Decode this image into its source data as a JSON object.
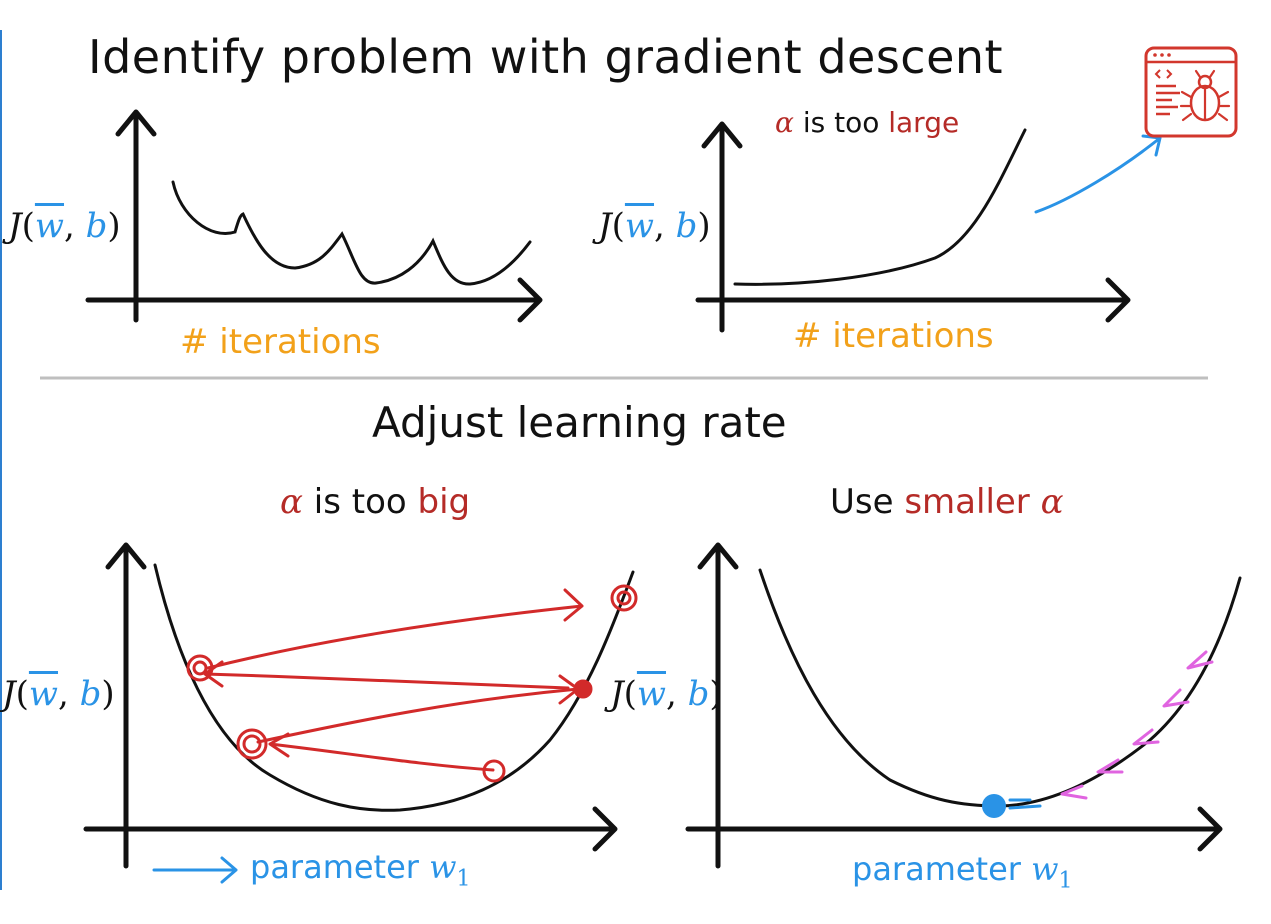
{
  "page": {
    "title": "Identify problem with gradient descent",
    "section_title": "Adjust learning rate"
  },
  "top_left": {
    "ylabel_fn": "J",
    "ylabel_w": "w",
    "ylabel_b": "b",
    "xlabel": "# iterations"
  },
  "top_right": {
    "ylabel_fn": "J",
    "ylabel_w": "w",
    "ylabel_b": "b",
    "xlabel": "# iterations",
    "caption_alpha": "α",
    "caption_mid": " is too ",
    "caption_word": "large"
  },
  "bottom_left": {
    "ylabel_fn": "J",
    "ylabel_w": "w",
    "ylabel_b": "b",
    "caption_alpha": "α",
    "caption_mid": " is too ",
    "caption_word": "big",
    "param_text": "parameter ",
    "param_var": "w",
    "param_sub": "1"
  },
  "bottom_right": {
    "ylabel_fn": "J",
    "ylabel_w": "w",
    "ylabel_b": "b",
    "caption_lead": "Use ",
    "caption_word": "smaller",
    "caption_alpha": "α",
    "param_text": "parameter ",
    "param_var": "w",
    "param_sub": "1"
  },
  "icons": {
    "debug": "code-bug-icon"
  },
  "colors": {
    "axis": "#111111",
    "curve": "#111111",
    "overshoot": "#d22a2a",
    "converge": "#e064e0",
    "highlight": "#2a93e6",
    "xlabel": "#f2a11a",
    "accent_red": "#b52b27"
  }
}
